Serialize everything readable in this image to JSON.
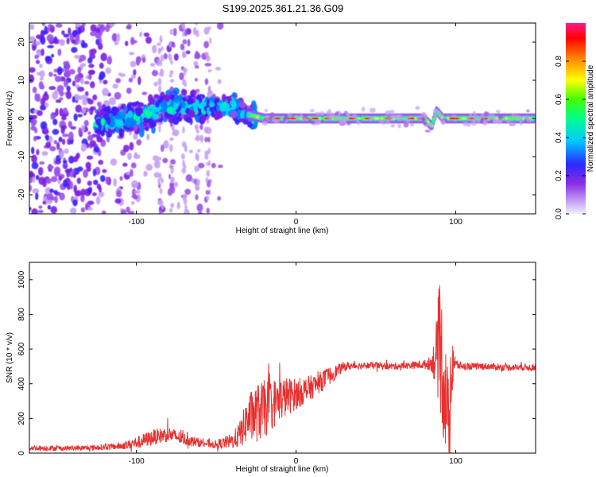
{
  "title": "S199.2025.361.21.36.G09",
  "chart_data": [
    {
      "type": "heatmap",
      "name": "spectrogram",
      "xlabel": "Height of straight line (km)",
      "ylabel": "Frequency (Hz)",
      "xlim": [
        -167,
        150
      ],
      "ylim": [
        -25,
        25
      ],
      "xticks": [
        -100,
        0,
        100
      ],
      "yticks": [
        -20,
        -10,
        0,
        10,
        20
      ],
      "colorbar": {
        "label": "Normalized spectral amplitude",
        "range": [
          0,
          1
        ],
        "ticks": [
          0.0,
          0.2,
          0.4,
          0.6,
          0.8
        ],
        "colormap": [
          "#d8c8f8",
          "#8a2be2",
          "#2020ff",
          "#00c8ff",
          "#00ff80",
          "#40ff00",
          "#ffff00",
          "#ff8000",
          "#ff0000",
          "#ff1080"
        ]
      },
      "ridge": {
        "x": [
          -120,
          -100,
          -80,
          -60,
          -40,
          -30,
          -20,
          -10,
          0,
          20,
          40,
          60,
          80,
          85,
          88,
          92,
          100,
          120,
          150
        ],
        "y": [
          -1,
          0,
          3,
          3,
          3,
          1,
          0,
          0,
          0,
          0,
          0,
          0,
          0,
          -2,
          2,
          0,
          0,
          0,
          0
        ]
      }
    },
    {
      "type": "line",
      "name": "snr",
      "xlabel": "Height of straight line (km)",
      "ylabel": "SNR (10 * v/v)",
      "xlim": [
        -167,
        150
      ],
      "ylim": [
        0,
        1100
      ],
      "xticks": [
        -100,
        0,
        100
      ],
      "yticks": [
        0,
        200,
        400,
        600,
        800,
        1000
      ],
      "color": "#e83030",
      "x": [
        -167,
        -150,
        -130,
        -110,
        -100,
        -90,
        -80,
        -70,
        -60,
        -50,
        -40,
        -35,
        -30,
        -25,
        -20,
        -15,
        -10,
        -5,
        0,
        5,
        10,
        15,
        20,
        25,
        30,
        40,
        50,
        60,
        70,
        80,
        85,
        88,
        90,
        92,
        94,
        96,
        98,
        100,
        105,
        110,
        120,
        130,
        140,
        150
      ],
      "values": [
        30,
        28,
        30,
        40,
        60,
        90,
        110,
        80,
        60,
        50,
        70,
        110,
        200,
        230,
        250,
        280,
        310,
        330,
        340,
        360,
        380,
        410,
        440,
        470,
        500,
        505,
        505,
        500,
        505,
        510,
        520,
        560,
        650,
        450,
        300,
        150,
        560,
        510,
        500,
        500,
        500,
        495,
        495,
        495
      ],
      "spread": [
        15,
        15,
        15,
        20,
        35,
        45,
        45,
        35,
        25,
        25,
        45,
        80,
        140,
        170,
        170,
        150,
        130,
        110,
        90,
        80,
        70,
        60,
        55,
        40,
        25,
        20,
        20,
        20,
        20,
        25,
        45,
        220,
        380,
        380,
        300,
        220,
        220,
        30,
        20,
        20,
        20,
        20,
        20,
        20
      ]
    }
  ]
}
